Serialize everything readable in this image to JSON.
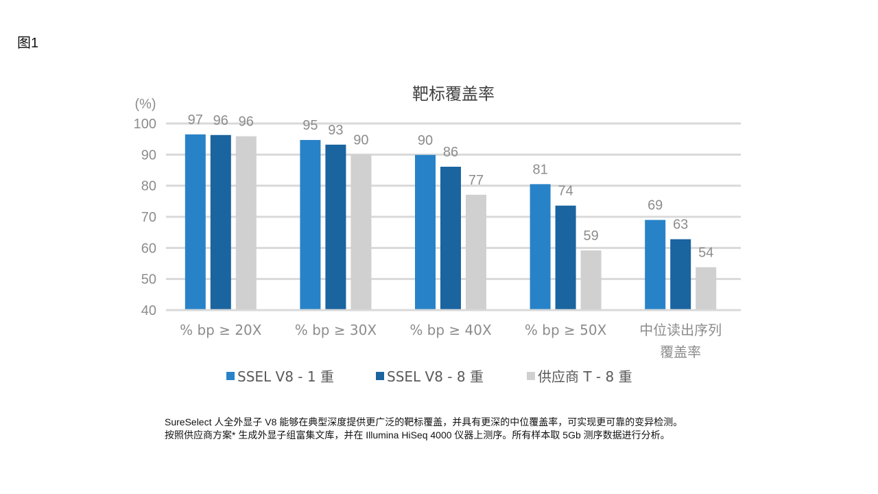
{
  "figure_label": "图1",
  "caption": {
    "line1": "SureSelect 人全外显子 V8 能够在典型深度提供更广泛的靶标覆盖，并具有更深的中位覆盖率，可实现更可靠的变异检测。",
    "line2": "按照供应商方案* 生成外显子组富集文库，并在 Illumina HiSeq 4000 仪器上测序。所有样本取 5Gb 测序数据进行分析。"
  },
  "chart_data": {
    "type": "bar",
    "title": "靶标覆盖率",
    "ylabel": "(%)",
    "xlabel": "",
    "ylim": [
      40,
      100
    ],
    "yticks": [
      40,
      50,
      60,
      70,
      80,
      90,
      100
    ],
    "grid": true,
    "legend_position": "bottom",
    "categories": [
      "% bp ≥ 20X",
      "% bp ≥ 30X",
      "% bp ≥ 40X",
      "% bp ≥ 50X",
      "中位读出序列\n覆盖率"
    ],
    "series": [
      {
        "name": "SSEL V8 - 1 重",
        "color": "#2882c8",
        "values": [
          96.5,
          94.7,
          89.9,
          80.5,
          69.0
        ],
        "labels": [
          "97",
          "95",
          "90",
          "81",
          "69"
        ]
      },
      {
        "name": "SSEL V8 - 8 重",
        "color": "#1a64a0",
        "values": [
          96.3,
          93.2,
          86.1,
          73.6,
          62.8
        ],
        "labels": [
          "96",
          "93",
          "86",
          "74",
          "63"
        ]
      },
      {
        "name": "供应商 T - 8 重",
        "color": "#d0d0d0",
        "values": [
          95.9,
          90.0,
          77.1,
          59.2,
          53.8
        ],
        "labels": [
          "96",
          "90",
          "77",
          "59",
          "54"
        ]
      }
    ],
    "colors": {
      "gridline": "#d9d9d9",
      "tick_text": "#8c8c8c",
      "title": "#404040"
    }
  }
}
